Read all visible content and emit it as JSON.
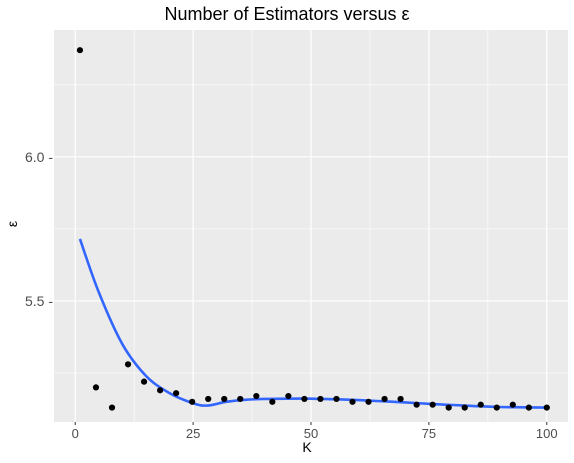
{
  "chart_data": {
    "type": "scatter",
    "title": "Number of Estimators versus ε",
    "xlabel": "K",
    "ylabel": "ε",
    "xlim": [
      -4.5,
      104.5
    ],
    "ylim": [
      5.08,
      6.44
    ],
    "x_ticks": [
      0,
      25,
      50,
      75,
      100
    ],
    "x_tick_labels": [
      "0",
      "25",
      "50",
      "75",
      "100"
    ],
    "y_ticks": [
      5.5,
      6.0
    ],
    "y_tick_labels": [
      "5.5 -",
      "6.0 -"
    ],
    "grid": true,
    "background": "#ebebeb",
    "grid_color": "#ffffff",
    "points": {
      "color": "#000000",
      "x": [
        1,
        4.4,
        7.8,
        11.2,
        14.6,
        18,
        21.4,
        24.8,
        28.2,
        31.6,
        35,
        38.4,
        41.8,
        45.2,
        48.6,
        52,
        55.4,
        58.8,
        62.2,
        65.6,
        69,
        72.4,
        75.8,
        79.2,
        82.6,
        86,
        89.4,
        92.8,
        96.2,
        100
      ],
      "y": [
        6.37,
        5.2,
        5.13,
        5.28,
        5.22,
        5.19,
        5.18,
        5.15,
        5.16,
        5.16,
        5.16,
        5.17,
        5.15,
        5.17,
        5.16,
        5.16,
        5.16,
        5.15,
        5.15,
        5.16,
        5.16,
        5.14,
        5.14,
        5.13,
        5.13,
        5.14,
        5.13,
        5.14,
        5.13,
        5.13
      ]
    },
    "smooth": {
      "color": "#3366ff",
      "x": [
        1,
        5,
        10,
        15,
        20,
        25,
        28,
        32,
        36,
        40,
        45,
        50,
        55,
        60,
        65,
        70,
        75,
        80,
        85,
        90,
        95,
        100
      ],
      "y": [
        5.715,
        5.53,
        5.35,
        5.24,
        5.18,
        5.145,
        5.137,
        5.15,
        5.157,
        5.16,
        5.161,
        5.161,
        5.159,
        5.156,
        5.152,
        5.148,
        5.143,
        5.139,
        5.135,
        5.132,
        5.131,
        5.13
      ]
    }
  }
}
